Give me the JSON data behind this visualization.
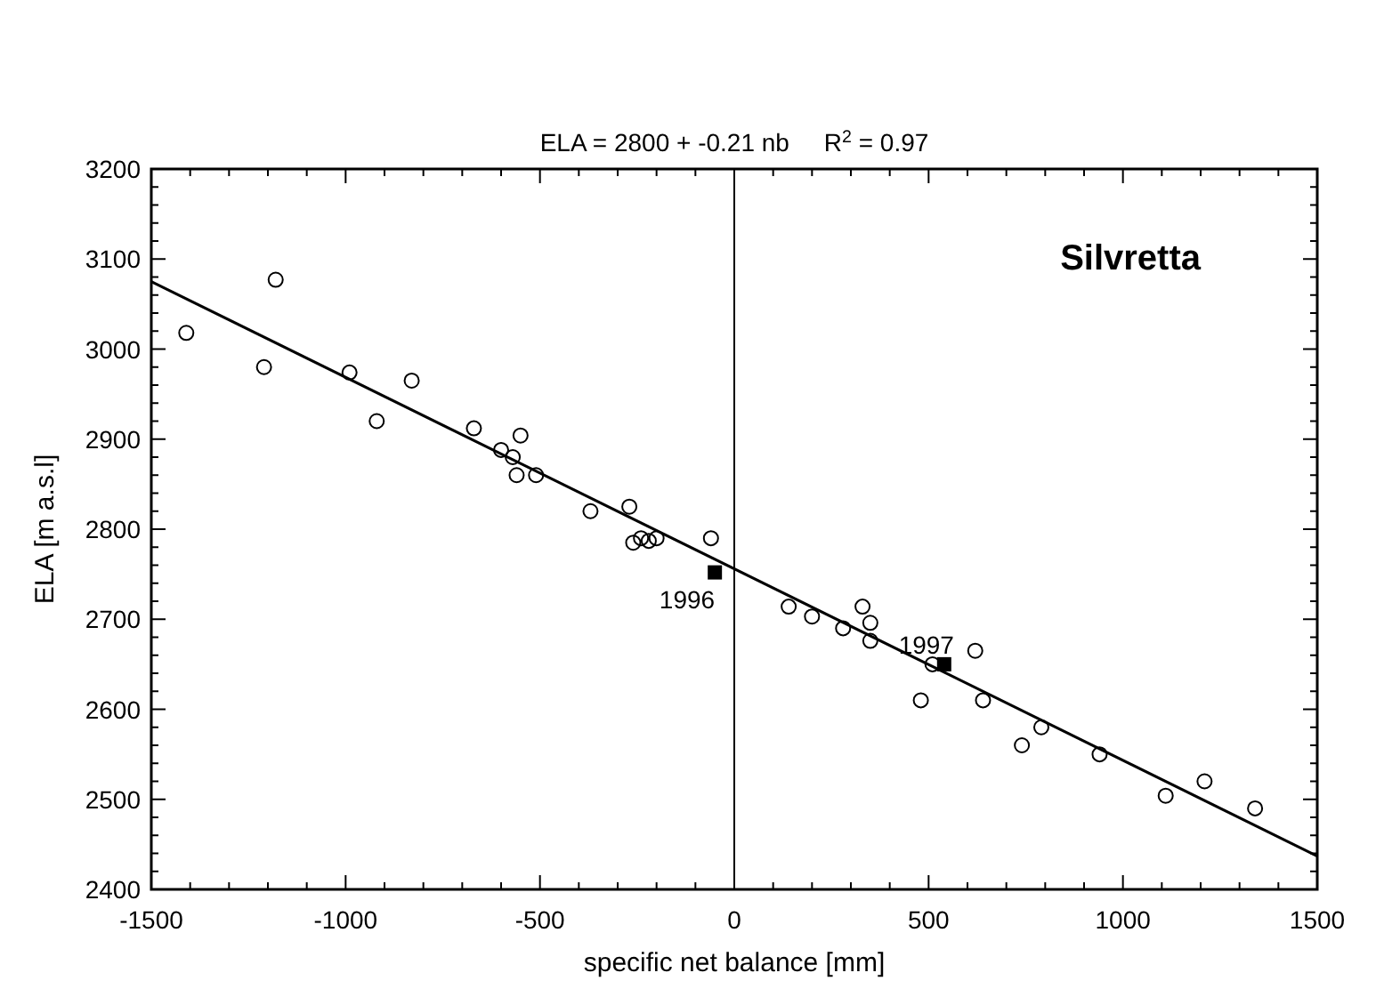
{
  "chart_data": {
    "type": "scatter",
    "title": "ELA = 2800 + -0.21 nb     R$^{2}$ = 0.97",
    "xlabel": "specific net balance [mm]",
    "ylabel": "ELA [m a.s.l]",
    "xlim": [
      -1500,
      1500
    ],
    "xticks": [
      -1500,
      -1000,
      -500,
      0,
      500,
      1000,
      1500
    ],
    "ylim": [
      2400,
      3200
    ],
    "yticks": [
      2400,
      2500,
      2600,
      2700,
      2800,
      2900,
      3000,
      3100,
      3200
    ],
    "grid": false,
    "series": [
      {
        "type": "scatter",
        "marker": "circle",
        "color": "#000000",
        "x": [
          -1410,
          -1180,
          -1210,
          -990,
          -920,
          -830,
          -670,
          -600,
          -570,
          -550,
          -560,
          -510,
          -370,
          -270,
          -260,
          -240,
          -220,
          -200,
          -60,
          140,
          200,
          280,
          330,
          350,
          350,
          480,
          510,
          620,
          640,
          740,
          790,
          940,
          1110,
          1210,
          1340
        ],
        "values": [
          3018,
          3077,
          2980,
          2974,
          2920,
          2965,
          2912,
          2888,
          2880,
          2904,
          2860,
          2860,
          2820,
          2825,
          2785,
          2790,
          2787,
          2790,
          2790,
          2714,
          2703,
          2690,
          2714,
          2696,
          2676,
          2610,
          2650,
          2665,
          2610,
          2560,
          2580,
          2550,
          2504,
          2520,
          2490
        ]
      },
      {
        "type": "scatter",
        "marker": "square",
        "color": "#000000",
        "x": [
          -50,
          540
        ],
        "values": [
          2752,
          2650
        ]
      },
      {
        "type": "line",
        "marker": "none",
        "color": "#000000",
        "x": [
          -1500,
          1500
        ],
        "values": [
          3075,
          2437
        ]
      }
    ],
    "ref_lines": [
      {
        "axis": "x",
        "value": 0,
        "label": null,
        "color": "#000000"
      }
    ],
    "annotations": [
      "Silvretta",
      {
        "text": "1996",
        "x": -50,
        "y": 2752
      },
      {
        "text": "1997",
        "x": 540,
        "y": 2650
      }
    ]
  }
}
